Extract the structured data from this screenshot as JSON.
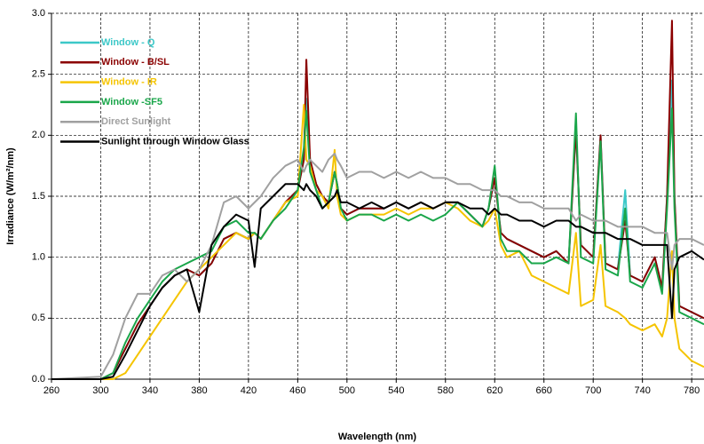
{
  "chart_data": {
    "type": "line",
    "xlabel": "Wavelength (nm)",
    "ylabel": "Irradiance (W/m²/nm)",
    "x": [
      260,
      300,
      310,
      320,
      330,
      340,
      350,
      360,
      370,
      380,
      390,
      400,
      410,
      420,
      425,
      430,
      440,
      450,
      460,
      465,
      467,
      470,
      475,
      480,
      485,
      490,
      492,
      495,
      500,
      510,
      520,
      530,
      540,
      550,
      560,
      570,
      580,
      590,
      600,
      610,
      615,
      620,
      625,
      630,
      640,
      650,
      660,
      670,
      680,
      686,
      690,
      700,
      706,
      710,
      720,
      726,
      730,
      740,
      750,
      756,
      760,
      764,
      766,
      770,
      780,
      790
    ],
    "series": [
      {
        "name": "Window - Q",
        "color": "#3cc8c8",
        "values": [
          0,
          0,
          0.05,
          0.25,
          0.45,
          0.6,
          0.75,
          0.85,
          0.9,
          0.85,
          0.95,
          1.15,
          1.2,
          1.15,
          1.2,
          1.15,
          1.3,
          1.45,
          1.55,
          1.8,
          2.3,
          1.8,
          1.6,
          1.5,
          1.45,
          1.7,
          1.6,
          1.4,
          1.35,
          1.4,
          1.4,
          1.4,
          1.45,
          1.4,
          1.45,
          1.4,
          1.45,
          1.45,
          1.35,
          1.25,
          1.4,
          1.65,
          1.2,
          1.15,
          1.1,
          1.05,
          1.0,
          1.05,
          0.95,
          2.05,
          1.1,
          1.0,
          2.0,
          0.95,
          0.9,
          1.55,
          0.85,
          0.8,
          1.0,
          0.75,
          1.5,
          2.45,
          1.5,
          0.6,
          0.55,
          0.5
        ]
      },
      {
        "name": "Window - B/SL",
        "color": "#8b0000",
        "values": [
          0,
          0,
          0.05,
          0.25,
          0.45,
          0.6,
          0.75,
          0.85,
          0.9,
          0.85,
          0.95,
          1.15,
          1.2,
          1.15,
          1.2,
          1.15,
          1.3,
          1.45,
          1.55,
          1.8,
          2.62,
          1.8,
          1.6,
          1.5,
          1.45,
          1.7,
          1.6,
          1.4,
          1.35,
          1.4,
          1.4,
          1.4,
          1.45,
          1.4,
          1.45,
          1.4,
          1.45,
          1.45,
          1.35,
          1.25,
          1.4,
          1.65,
          1.2,
          1.15,
          1.1,
          1.05,
          1.0,
          1.05,
          0.95,
          2.05,
          1.1,
          1.0,
          2.0,
          0.95,
          0.9,
          1.3,
          0.85,
          0.8,
          1.0,
          0.75,
          1.5,
          2.94,
          1.5,
          0.6,
          0.55,
          0.5
        ]
      },
      {
        "name": "Window - IR",
        "color": "#f5c400",
        "values": [
          0,
          0,
          0,
          0.05,
          0.2,
          0.35,
          0.5,
          0.65,
          0.8,
          0.9,
          1.0,
          1.1,
          1.2,
          1.15,
          1.2,
          1.15,
          1.3,
          1.45,
          1.5,
          2.25,
          1.8,
          1.75,
          1.55,
          1.5,
          1.4,
          1.88,
          1.5,
          1.35,
          1.3,
          1.35,
          1.35,
          1.35,
          1.4,
          1.35,
          1.4,
          1.4,
          1.45,
          1.4,
          1.3,
          1.25,
          1.3,
          1.4,
          1.1,
          1.0,
          1.05,
          0.85,
          0.8,
          0.75,
          0.7,
          1.2,
          0.6,
          0.65,
          1.1,
          0.6,
          0.55,
          0.5,
          0.45,
          0.4,
          0.45,
          0.35,
          0.5,
          1.05,
          0.5,
          0.25,
          0.15,
          0.1
        ]
      },
      {
        "name": "Window -SF5",
        "color": "#1aa64a",
        "values": [
          0,
          0,
          0.05,
          0.3,
          0.5,
          0.65,
          0.8,
          0.9,
          0.95,
          1.0,
          1.05,
          1.25,
          1.3,
          1.2,
          1.2,
          1.15,
          1.3,
          1.4,
          1.55,
          1.9,
          2.2,
          1.7,
          1.55,
          1.4,
          1.45,
          1.7,
          1.6,
          1.4,
          1.3,
          1.35,
          1.35,
          1.3,
          1.35,
          1.3,
          1.35,
          1.3,
          1.35,
          1.45,
          1.35,
          1.25,
          1.4,
          1.75,
          1.15,
          1.05,
          1.05,
          0.95,
          0.95,
          1.0,
          0.95,
          2.18,
          1.0,
          0.95,
          1.95,
          0.9,
          0.85,
          1.4,
          0.8,
          0.75,
          0.95,
          0.7,
          1.4,
          2.22,
          1.4,
          0.55,
          0.5,
          0.45
        ]
      },
      {
        "name": "Direct Sunlight",
        "color": "#a0a0a0",
        "values": [
          0,
          0.02,
          0.2,
          0.5,
          0.7,
          0.7,
          0.85,
          0.9,
          0.8,
          0.9,
          1.1,
          1.45,
          1.5,
          1.4,
          1.45,
          1.5,
          1.65,
          1.75,
          1.8,
          1.7,
          1.75,
          1.8,
          1.75,
          1.7,
          1.8,
          1.85,
          1.8,
          1.75,
          1.65,
          1.7,
          1.7,
          1.65,
          1.7,
          1.65,
          1.7,
          1.65,
          1.65,
          1.6,
          1.6,
          1.55,
          1.55,
          1.55,
          1.5,
          1.5,
          1.45,
          1.45,
          1.4,
          1.4,
          1.4,
          1.3,
          1.35,
          1.3,
          1.3,
          1.3,
          1.25,
          1.25,
          1.25,
          1.25,
          1.2,
          1.2,
          1.2,
          0.9,
          1.1,
          1.15,
          1.15,
          1.1
        ]
      },
      {
        "name": "Sunlight through Window Glass",
        "color": "#000000",
        "values": [
          0,
          0,
          0.02,
          0.2,
          0.4,
          0.6,
          0.75,
          0.85,
          0.9,
          0.55,
          1.1,
          1.25,
          1.35,
          1.3,
          0.92,
          1.4,
          1.5,
          1.6,
          1.6,
          1.55,
          1.6,
          1.55,
          1.5,
          1.4,
          1.45,
          1.5,
          1.55,
          1.45,
          1.45,
          1.4,
          1.45,
          1.4,
          1.45,
          1.4,
          1.45,
          1.4,
          1.45,
          1.45,
          1.4,
          1.4,
          1.35,
          1.4,
          1.35,
          1.35,
          1.3,
          1.3,
          1.25,
          1.3,
          1.3,
          1.25,
          1.25,
          1.2,
          1.2,
          1.2,
          1.15,
          1.15,
          1.15,
          1.1,
          1.1,
          1.1,
          1.1,
          0.5,
          0.9,
          1.0,
          1.05,
          0.98
        ]
      }
    ],
    "xlim": [
      260,
      790
    ],
    "ylim": [
      0,
      3
    ],
    "xticks": [
      260,
      300,
      340,
      380,
      420,
      460,
      500,
      540,
      580,
      620,
      660,
      700,
      740,
      780
    ],
    "yticks": [
      {
        "value": 0,
        "label": "0.0"
      },
      {
        "value": 0.5,
        "label": "0.5"
      },
      {
        "value": 1,
        "label": "1.0"
      },
      {
        "value": 1.5,
        "label": "1.5"
      },
      {
        "value": 2,
        "label": "2.0"
      },
      {
        "value": 2.5,
        "label": "2.5"
      },
      {
        "value": 3,
        "label": "3.0"
      }
    ],
    "grid": true,
    "legend": "upper left"
  }
}
